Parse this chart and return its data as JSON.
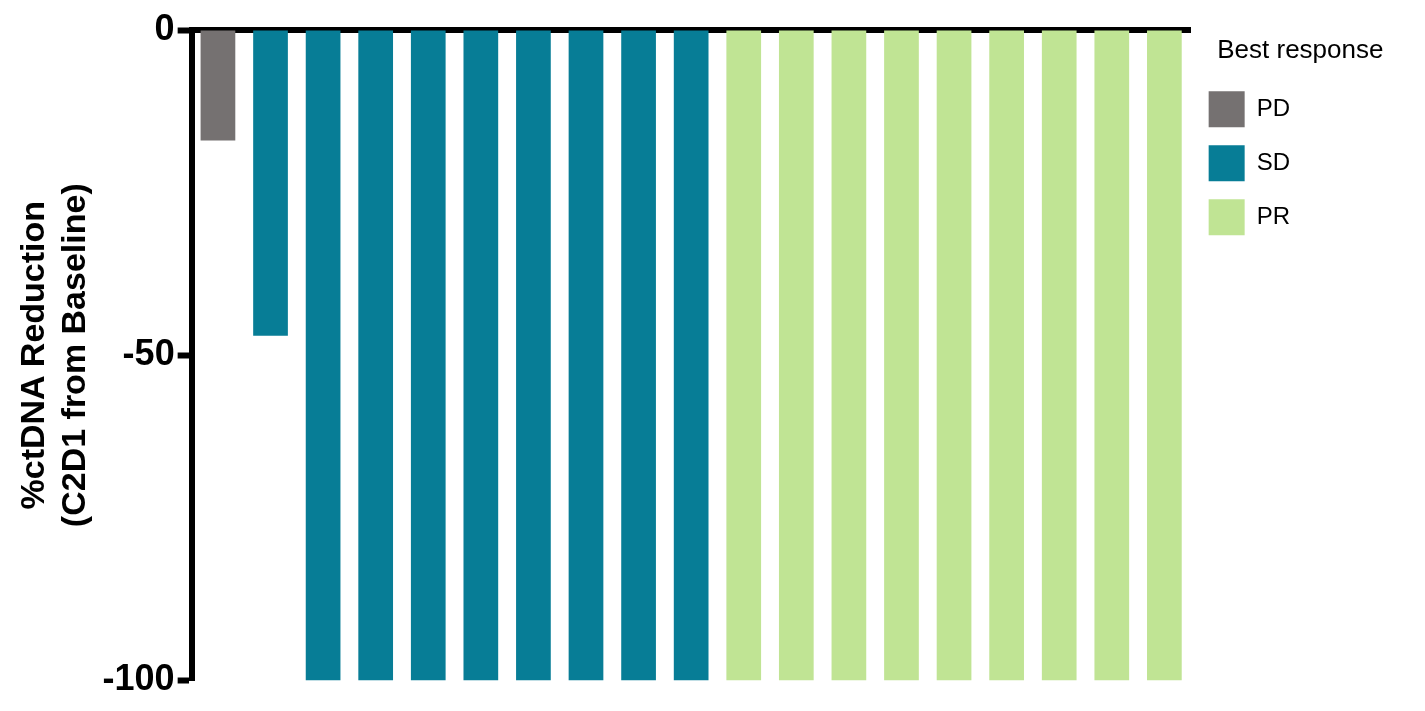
{
  "chart_data": {
    "type": "bar",
    "ylabel": "%ctDNA Reduction\n(C2D1 from Baseline)",
    "legend_title": "Best response",
    "legend": "top right",
    "grid": false,
    "tick_labels": "y",
    "categories": [
      null,
      null,
      null,
      null,
      null,
      null,
      null,
      null,
      null,
      null,
      null,
      null,
      null,
      null,
      null,
      null,
      null,
      null,
      null
    ],
    "ylim": [
      -100,
      0
    ],
    "yticks": [
      0,
      -50,
      -100
    ],
    "series": [
      {
        "name": "PD",
        "color": "#757171",
        "values": [
          -17,
          null,
          null,
          null,
          null,
          null,
          null,
          null,
          null,
          null,
          null,
          null,
          null,
          null,
          null,
          null,
          null,
          null,
          null
        ]
      },
      {
        "name": "SD",
        "color": "#077d96",
        "values": [
          null,
          -47,
          -100,
          -100,
          -100,
          -100,
          -100,
          -100,
          -100,
          -100,
          null,
          null,
          null,
          null,
          null,
          null,
          null,
          null,
          null
        ]
      },
      {
        "name": "PR",
        "color": "#c0e494",
        "values": [
          null,
          null,
          null,
          null,
          null,
          null,
          null,
          null,
          null,
          null,
          -100,
          -100,
          -100,
          -100,
          -100,
          -100,
          -100,
          -100,
          -100
        ]
      }
    ]
  }
}
